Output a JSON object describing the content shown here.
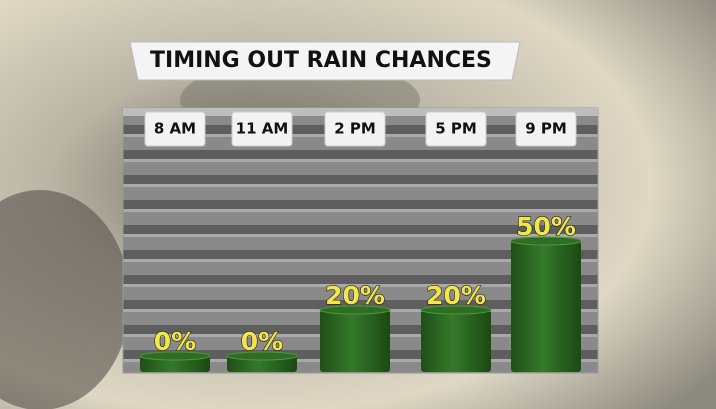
{
  "chart_data": {
    "type": "bar",
    "title": "TIMING OUT RAIN CHANCES",
    "categories": [
      "8 AM",
      "11 AM",
      "2 PM",
      "5 PM",
      "9 PM"
    ],
    "values": [
      0,
      0,
      20,
      20,
      50
    ],
    "value_labels": [
      "0%",
      "0%",
      "20%",
      "20%",
      "50%"
    ],
    "color": "#2f6e22"
  }
}
